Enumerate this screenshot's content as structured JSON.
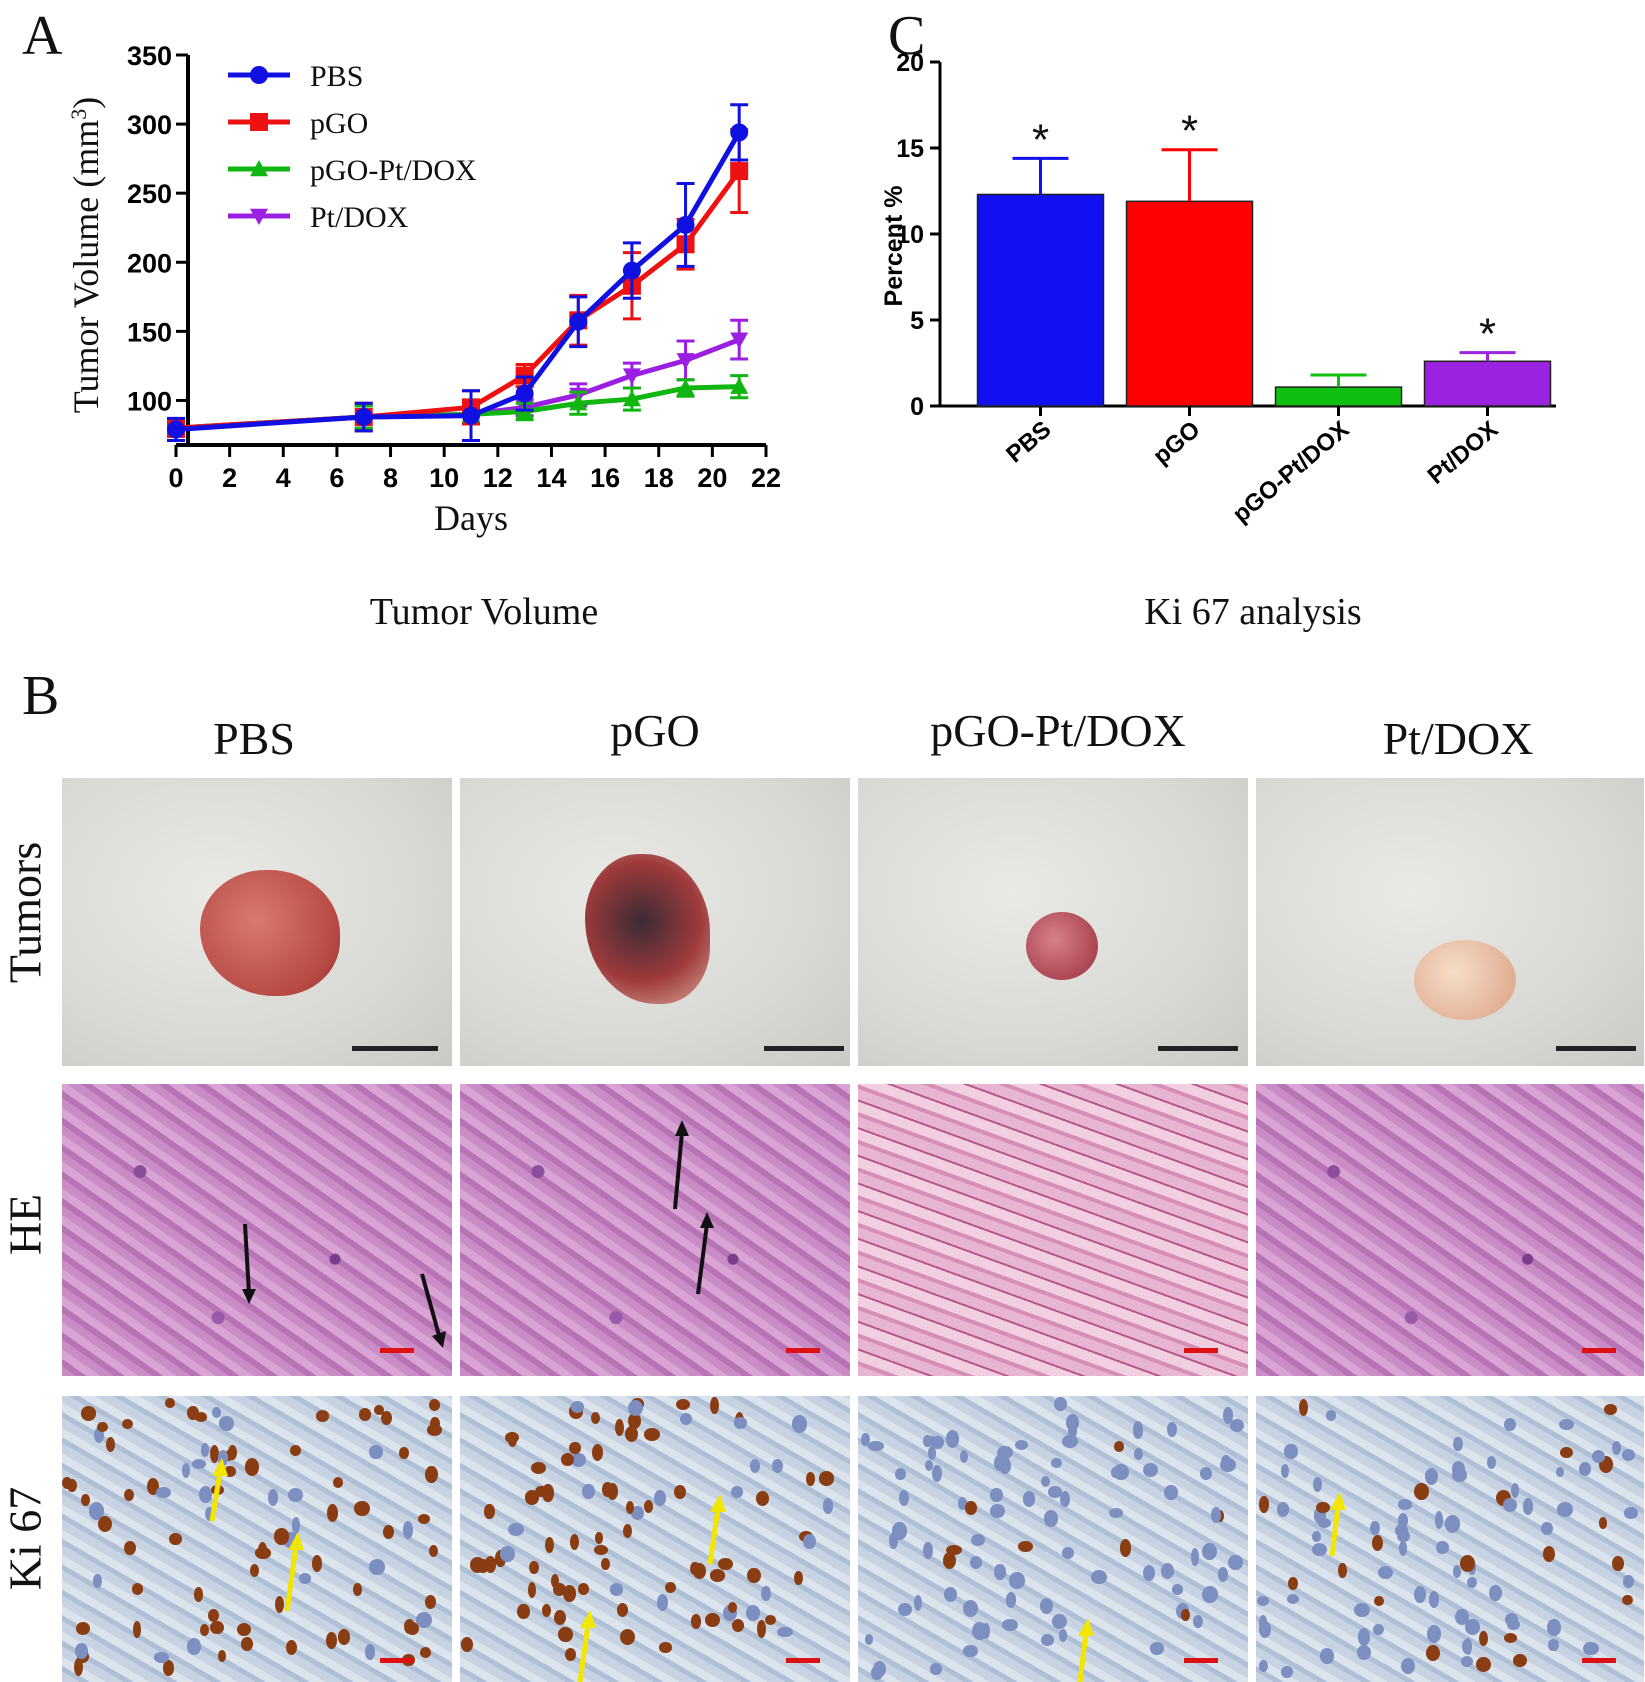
{
  "panels": {
    "a_letter": "A",
    "b_letter": "B",
    "c_letter": "C",
    "a_caption": "Tumor Volume",
    "c_caption": "Ki 67 analysis"
  },
  "chart_data": [
    {
      "type": "line",
      "xlabel": "Days",
      "ylabel": "Tumor Volume (mm",
      "ylabel_sup": "3",
      "ylabel_close": ")",
      "xlim": [
        0,
        22
      ],
      "ylim": [
        75,
        350
      ],
      "xticks": [
        0,
        2,
        4,
        6,
        8,
        10,
        12,
        14,
        16,
        18,
        20,
        22
      ],
      "yticks": [
        100,
        150,
        200,
        250,
        300,
        350
      ],
      "legend_position": "top-left",
      "grid": false,
      "x": [
        0,
        7,
        11,
        13,
        15,
        17,
        19,
        21
      ],
      "series": [
        {
          "name": "PBS",
          "color": "#1010e0",
          "marker": "circle",
          "values": [
            79,
            88,
            89,
            105,
            157,
            194,
            227,
            294
          ],
          "errors": [
            8,
            10,
            18,
            12,
            18,
            20,
            30,
            20
          ]
        },
        {
          "name": "pGO",
          "color": "#ee1111",
          "marker": "square",
          "values": [
            80,
            88,
            95,
            118,
            158,
            183,
            213,
            266
          ],
          "errors": [
            6,
            10,
            12,
            8,
            18,
            24,
            18,
            30
          ]
        },
        {
          "name": "pGO-Pt/DOX",
          "color": "#11b611",
          "marker": "triangle-up",
          "values": [
            80,
            88,
            90,
            92,
            98,
            101,
            109,
            110
          ],
          "errors": [
            5,
            8,
            6,
            6,
            8,
            8,
            6,
            8
          ]
        },
        {
          "name": "Pt/DOX",
          "color": "#9b1fe0",
          "marker": "triangle-down",
          "values": [
            80,
            88,
            90,
            95,
            104,
            118,
            129,
            144
          ],
          "errors": [
            5,
            8,
            6,
            6,
            8,
            9,
            14,
            14
          ]
        }
      ]
    },
    {
      "type": "bar",
      "ylabel": "Percent %",
      "ylim": [
        0,
        20
      ],
      "yticks": [
        0,
        5,
        10,
        15,
        20
      ],
      "categories": [
        "PBS",
        "pGO",
        "pGO-Pt/DOX",
        "Pt/DOX"
      ],
      "values": [
        12.3,
        11.9,
        1.1,
        2.6
      ],
      "errors": [
        2.1,
        3.0,
        0.7,
        0.5
      ],
      "colors": [
        "#1010f0",
        "#ff0000",
        "#10c010",
        "#9b22e0"
      ],
      "significance": [
        "*",
        "*",
        "",
        "*"
      ]
    }
  ],
  "panel_b": {
    "columns": [
      "PBS",
      "pGO",
      "pGO-Pt/DOX",
      "Pt/DOX"
    ],
    "rows": [
      "Tumors",
      "HE",
      "Ki 67"
    ],
    "colors": {
      "tumor_pbs": "#c8574f",
      "tumor_pgo": "#9e3a3c",
      "tumor_pgopt": "#b8555e",
      "tumor_pt": "#e6b9a0",
      "scalebar_photo": "#222222",
      "scalebar_micro": "#dd1111",
      "arrow_he": "#111111",
      "arrow_ki": "#f2e600"
    }
  }
}
